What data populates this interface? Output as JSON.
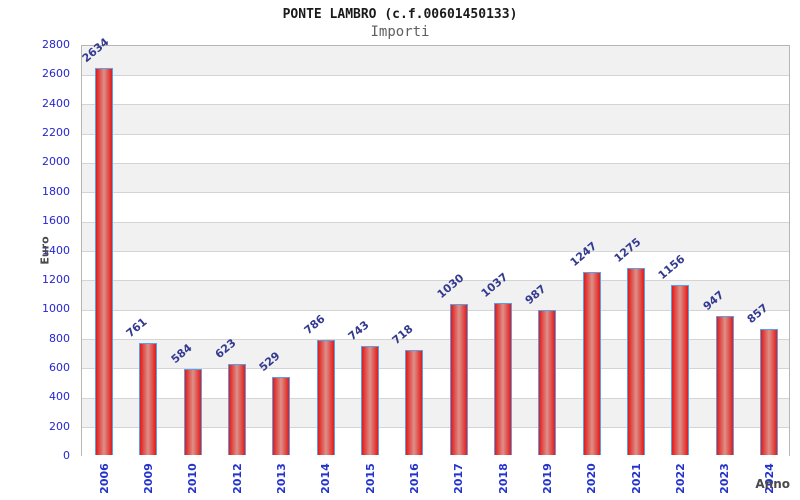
{
  "header": {
    "title": "PONTE LAMBRO (c.f.00601450133)",
    "subtitle": "Importi"
  },
  "chart_data": {
    "type": "bar",
    "title": "PONTE LAMBRO (c.f.00601450133)",
    "subtitle": "Importi",
    "xlabel": "Anno",
    "ylabel": "Euro",
    "categories": [
      "2006",
      "2009",
      "2010",
      "2012",
      "2013",
      "2014",
      "2015",
      "2016",
      "2017",
      "2018",
      "2019",
      "2020",
      "2021",
      "2022",
      "2023",
      "2024"
    ],
    "values": [
      2634,
      761,
      584,
      623,
      529,
      786,
      743,
      718,
      1030,
      1037,
      987,
      1247,
      1275,
      1156,
      947,
      857
    ],
    "ylim": [
      0,
      2800
    ],
    "ytick_step": 200,
    "grid": "horizontal gridlines with alternating gray/white bands",
    "legend": "none",
    "value_labels": "above bars, rotated",
    "x_tick_rotation": 90,
    "colors": {
      "bar_edge_fill": "#e31a1a",
      "bar_center_fill": "#dd9088",
      "bar_border": "#58a0e8",
      "y_tick_label": "#2626cf",
      "x_tick_label": "#2433cc",
      "value_label": "#333a8f",
      "band_gray": "#f1f1f1",
      "gridline": "#d4d4d4",
      "plot_border": "#b6b6b6",
      "title": "#1a1a1a",
      "subtitle": "#606060",
      "axis_title": "#4a4a4a"
    }
  }
}
